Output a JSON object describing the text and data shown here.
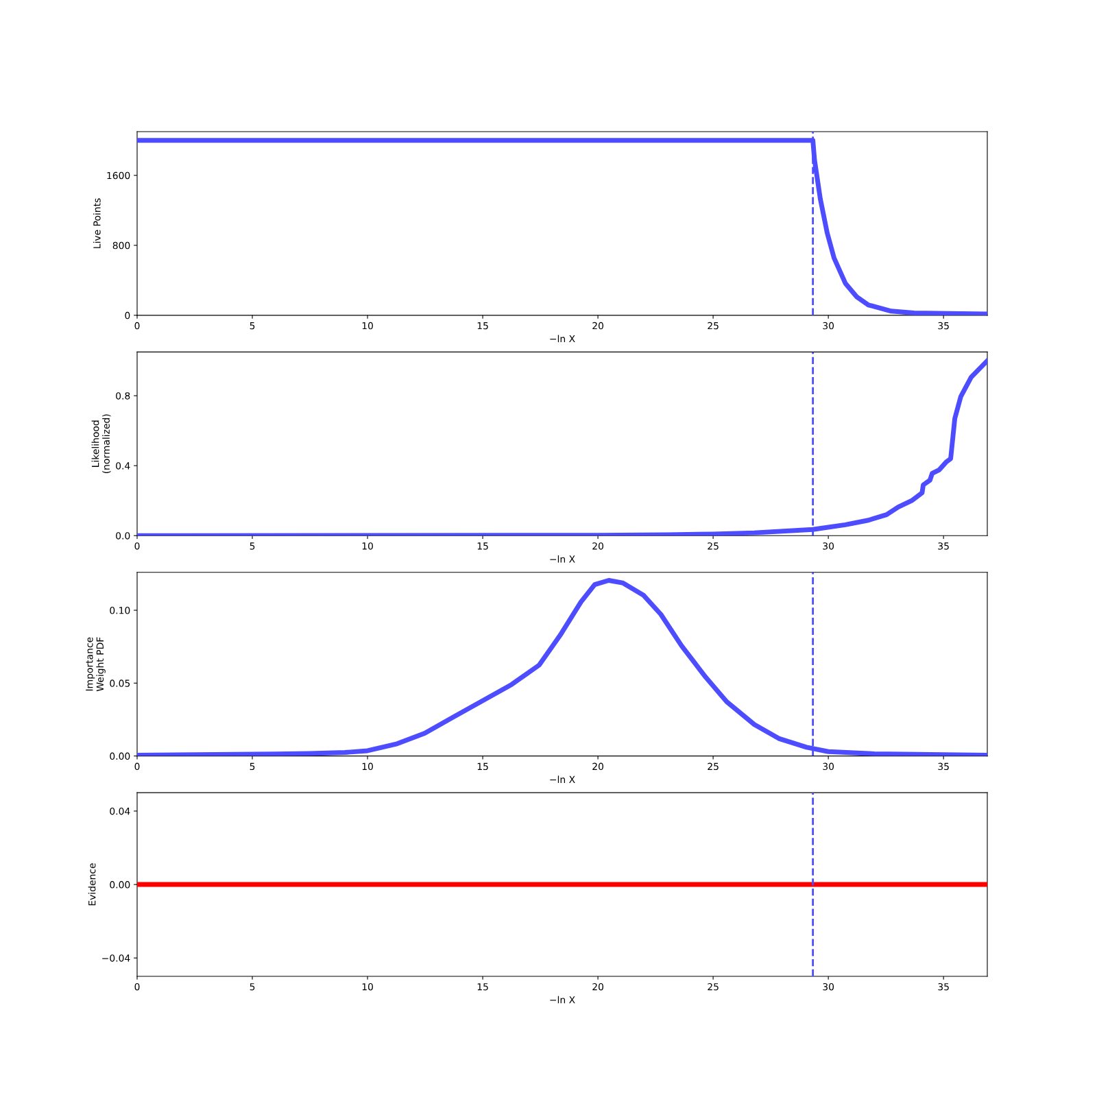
{
  "chart_data": [
    {
      "type": "line",
      "xlabel": "−ln X",
      "ylabel": "Live Points",
      "xlim": [
        0,
        36.9
      ],
      "xticks": [
        0,
        5,
        10,
        15,
        20,
        25,
        30,
        35
      ],
      "ylim": [
        0,
        2100
      ],
      "yticks": [
        0,
        800,
        1600
      ],
      "series": [
        {
          "color": "#4d4dff",
          "x": [
            0,
            29.33,
            29.4,
            29.65,
            29.95,
            30.25,
            30.74,
            31.24,
            31.74,
            32.73,
            33.72,
            35.2,
            36.9
          ],
          "values": [
            2000,
            2000,
            1779,
            1334,
            942,
            654,
            366,
            209,
            118,
            47,
            26,
            20,
            15
          ]
        }
      ],
      "ref_lines": [
        {
          "axis": "x",
          "value": 29.33,
          "color": "#4d4dff",
          "line_style": "dashed"
        }
      ]
    },
    {
      "type": "line",
      "xlabel": "−ln X",
      "ylabel": "Likelihood\n(normalized)",
      "xlim": [
        0,
        36.9
      ],
      "xticks": [
        0,
        5,
        10,
        15,
        20,
        25,
        30,
        35
      ],
      "ylim": [
        0,
        1.05
      ],
      "yticks": [
        {
          "value": 0,
          "label": "0.0"
        },
        0.4,
        0.8
      ],
      "series": [
        {
          "color": "#4d4dff",
          "x": [
            0,
            20,
            23,
            25,
            26.78,
            29.33,
            30.74,
            31.74,
            32.53,
            33.03,
            33.62,
            34.07,
            34.12,
            34.41,
            34.51,
            34.81,
            35.11,
            35.31,
            35.49,
            35.75,
            36.2,
            36.9
          ],
          "values": [
            0.0,
            0.002,
            0.005,
            0.009,
            0.016,
            0.035,
            0.062,
            0.088,
            0.12,
            0.163,
            0.2,
            0.245,
            0.29,
            0.317,
            0.356,
            0.376,
            0.42,
            0.44,
            0.67,
            0.795,
            0.906,
            1.0
          ]
        }
      ],
      "ref_lines": [
        {
          "axis": "x",
          "value": 29.33,
          "color": "#4d4dff",
          "line_style": "dashed"
        }
      ]
    },
    {
      "type": "line",
      "xlabel": "−ln X",
      "ylabel": "Importance\nWeight PDF",
      "xlim": [
        0,
        36.9
      ],
      "xticks": [
        0,
        5,
        10,
        15,
        20,
        25,
        30,
        35
      ],
      "ylim": [
        0,
        0.126
      ],
      "yticks": [
        {
          "value": 0,
          "label": "0.00"
        },
        0.05,
        {
          "value": 0.1,
          "label": "0.10"
        }
      ],
      "series": [
        {
          "color": "#4d4dff",
          "x": [
            0,
            6.0,
            7.5,
            9.02,
            10,
            11.28,
            12.48,
            13.69,
            15.05,
            16.25,
            17.45,
            18.36,
            19.26,
            19.86,
            20.47,
            21.07,
            21.97,
            22.73,
            23.63,
            24.68,
            25.59,
            26.79,
            27.85,
            29.05,
            30,
            32,
            36.9
          ],
          "values": [
            0.0005,
            0.0014,
            0.0017,
            0.0024,
            0.0036,
            0.0084,
            0.0156,
            0.0264,
            0.0384,
            0.049,
            0.0624,
            0.0828,
            0.1056,
            0.1176,
            0.1205,
            0.1188,
            0.1104,
            0.0972,
            0.0756,
            0.054,
            0.0372,
            0.0216,
            0.012,
            0.006,
            0.003,
            0.0015,
            0.0005
          ]
        }
      ],
      "ref_lines": [
        {
          "axis": "x",
          "value": 29.33,
          "color": "#4d4dff",
          "line_style": "dashed"
        }
      ]
    },
    {
      "type": "line",
      "xlabel": "−ln X",
      "ylabel": "Evidence",
      "xlim": [
        0,
        36.9
      ],
      "xticks": [
        0,
        5,
        10,
        15,
        20,
        25,
        30,
        35
      ],
      "ylim": [
        -0.05,
        0.05
      ],
      "yticks": [
        {
          "value": -0.04,
          "label": "−0.04"
        },
        {
          "value": 0,
          "label": "0.00"
        },
        0.04
      ],
      "series": [
        {
          "color": "#ff0000",
          "x": [
            0,
            36.9
          ],
          "values": [
            0,
            0
          ]
        }
      ],
      "ref_lines": [
        {
          "axis": "x",
          "value": 29.33,
          "color": "#4d4dff",
          "line_style": "dashed"
        }
      ]
    }
  ]
}
